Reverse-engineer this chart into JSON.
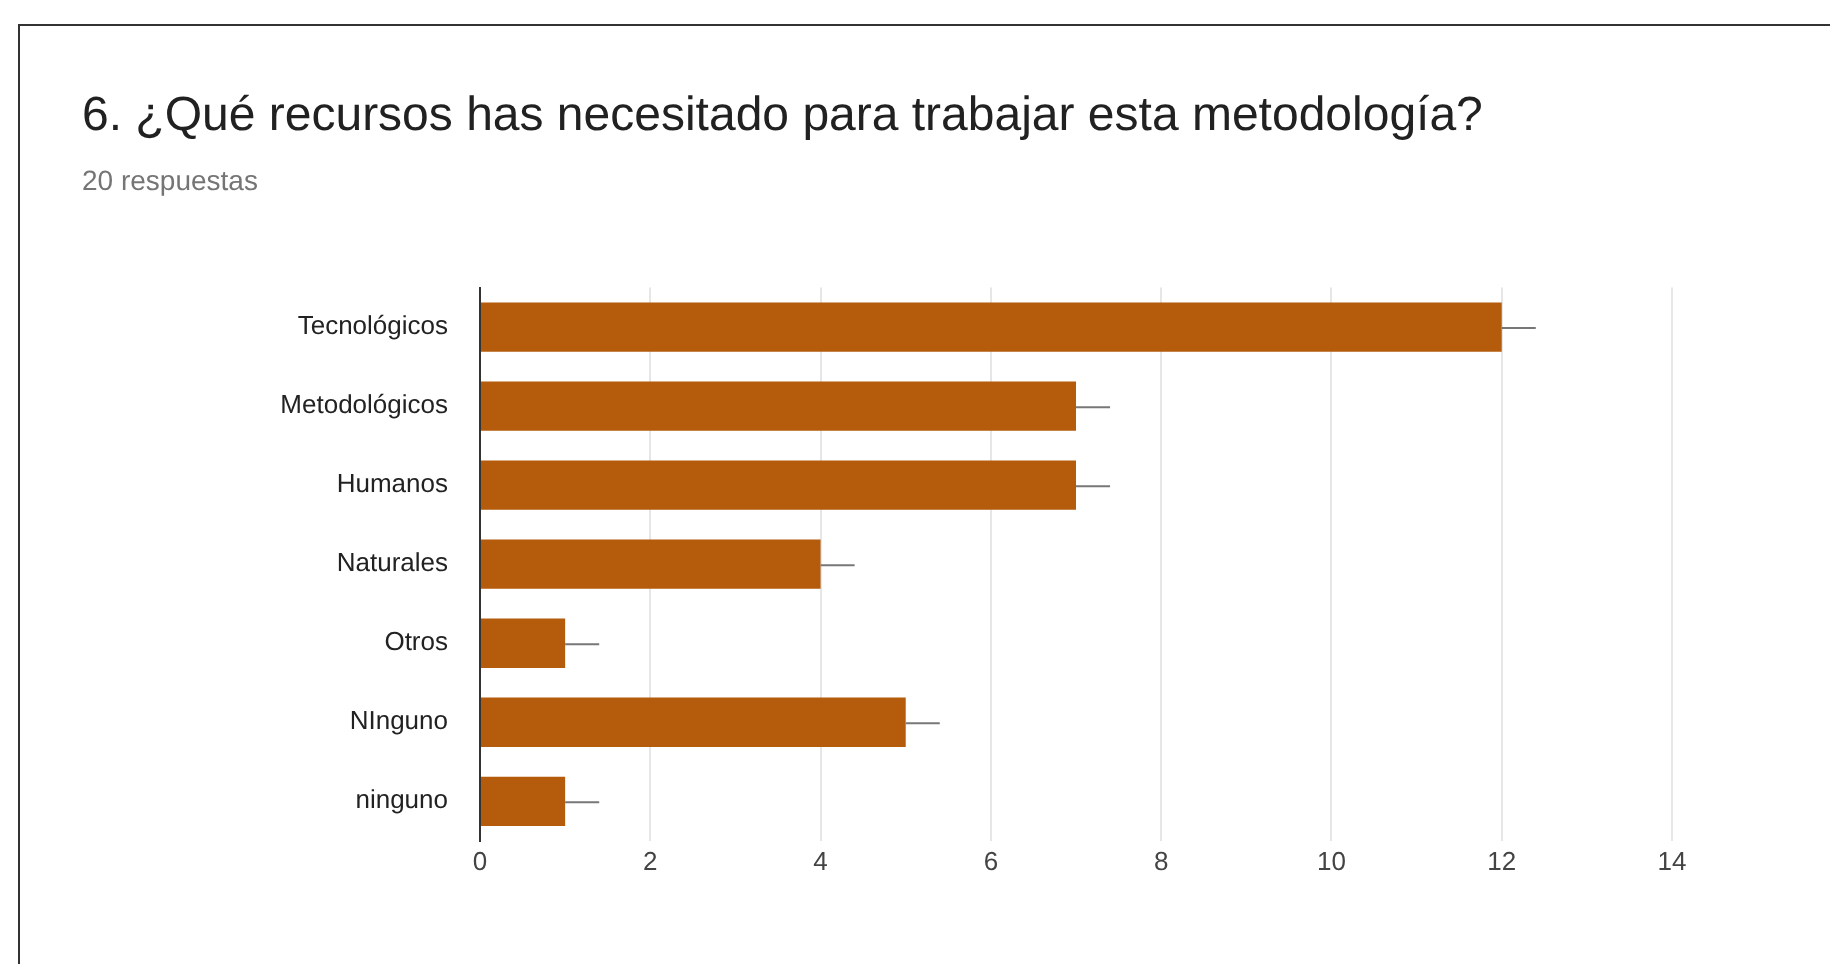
{
  "chart_data": {
    "type": "bar",
    "orientation": "horizontal",
    "title": "6. ¿Qué recursos has necesitado para trabajar esta metodología?",
    "subtitle": "20 respuestas",
    "categories": [
      "Tecnológicos",
      "Metodológicos",
      "Humanos",
      "Naturales",
      "Otros",
      "NInguno",
      "ninguno"
    ],
    "values": [
      12,
      7,
      7,
      4,
      1,
      5,
      1
    ],
    "errors": [
      [
        12,
        12.4
      ],
      [
        7,
        7.4
      ],
      [
        7,
        7.4
      ],
      [
        4,
        4.4
      ],
      [
        1,
        1.4
      ],
      [
        5,
        5.4
      ],
      [
        1,
        1.4
      ]
    ],
    "color": "#b45b0c",
    "xlim": [
      0,
      14
    ],
    "xticks": [
      0,
      2,
      4,
      6,
      8,
      10,
      12,
      14
    ],
    "grid": "x",
    "legend": false
  }
}
